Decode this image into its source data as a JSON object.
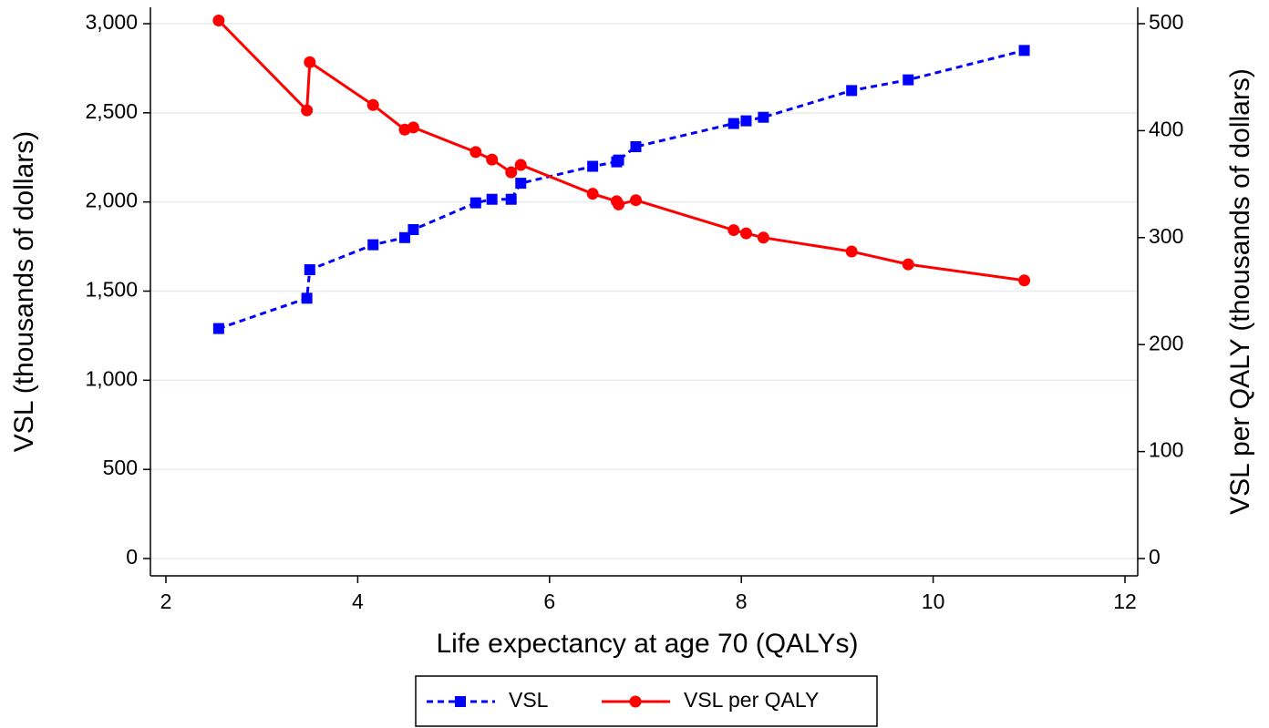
{
  "chart_data": {
    "type": "line",
    "x_label": "Life expectancy at age 70 (QALYs)",
    "y_label": "VSL (thousands of dollars)",
    "y2_label": "VSL per QALY (thousands of dollars)",
    "x": [
      2.55,
      3.47,
      3.5,
      4.16,
      4.49,
      4.58,
      5.23,
      5.4,
      5.6,
      5.7,
      6.45,
      6.7,
      6.72,
      6.9,
      7.92,
      8.05,
      8.23,
      9.15,
      9.74,
      10.95
    ],
    "series": [
      {
        "name": "VSL",
        "color": "#0000ff",
        "dash": true,
        "marker": "square",
        "axis": "y",
        "values": [
          1290,
          1460,
          1620,
          1760,
          1800,
          1845,
          1995,
          2015,
          2015,
          2105,
          2200,
          2225,
          2235,
          2310,
          2440,
          2455,
          2475,
          2625,
          2685,
          2850
        ]
      },
      {
        "name": "VSL per QALY",
        "color": "#ff0000",
        "dash": false,
        "marker": "circle",
        "axis": "y2",
        "values": [
          503,
          419,
          464,
          424,
          401,
          403,
          380,
          373,
          361,
          368,
          341,
          334,
          331,
          335,
          307,
          304,
          300,
          287,
          275,
          260
        ]
      }
    ],
    "xlim": [
      2,
      12
    ],
    "xticks": [
      2,
      4,
      6,
      8,
      10,
      12
    ],
    "ylim": [
      0,
      3000
    ],
    "yticks": [
      0,
      500,
      {
        "value": 1000,
        "label": "1,000"
      },
      {
        "value": 1500,
        "label": "1,500"
      },
      {
        "value": 2000,
        "label": "2,000"
      },
      {
        "value": 2500,
        "label": "2,500"
      },
      {
        "value": 3000,
        "label": "3,000"
      }
    ],
    "y2lim": [
      0,
      500
    ],
    "y2ticks": [
      0,
      100,
      200,
      300,
      400,
      500
    ],
    "grid": true,
    "legend": "bottom"
  }
}
